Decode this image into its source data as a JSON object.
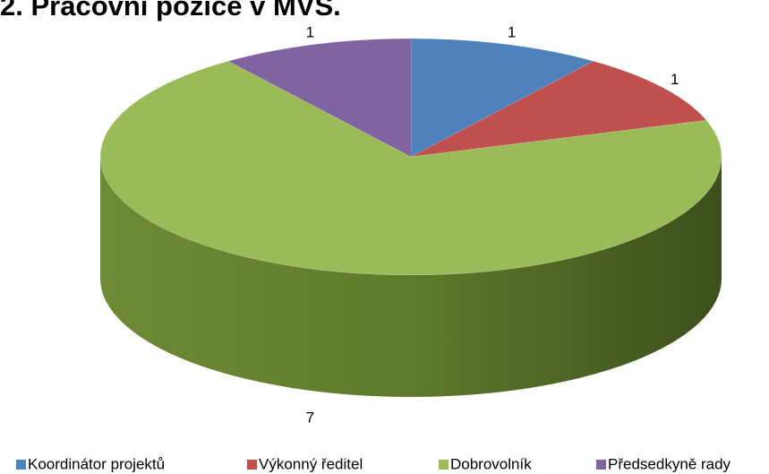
{
  "chart_data": {
    "type": "pie",
    "title": "2. Pracovní pozice v MVS.",
    "categories": [
      "Koordinátor projektů",
      "Výkonný ředitel",
      "Dobrovolník",
      "Předsedkyně rady"
    ],
    "values": [
      1,
      1,
      7,
      1
    ],
    "colors": [
      "#4f81bd",
      "#c0504d",
      "#9bbb59",
      "#8064a2"
    ],
    "legend": "bottom"
  }
}
